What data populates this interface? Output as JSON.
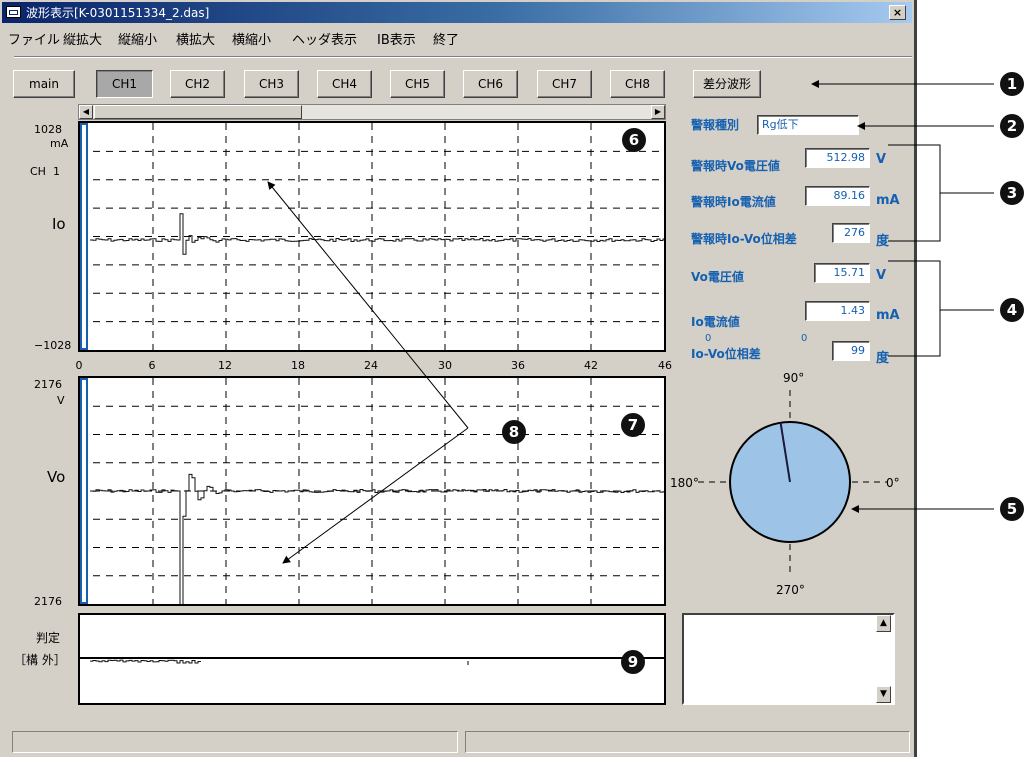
{
  "window": {
    "title": "波形表示[K-0301151334_2.das]",
    "close_label": "×"
  },
  "menu": {
    "items": [
      "ファイル",
      "縦拡大",
      "縦縮小",
      "横拡大",
      "横縮小",
      "ヘッダ表示",
      "IB表示",
      "終了"
    ]
  },
  "channel_buttons": {
    "items": [
      "main",
      "CH1",
      "CH2",
      "CH3",
      "CH4",
      "CH5",
      "CH6",
      "CH7",
      "CH8"
    ],
    "selected": "CH1",
    "diff_label": "差分波形"
  },
  "scrollbar": {
    "left_arrow": "◀",
    "right_arrow": "▶"
  },
  "plot_io": {
    "top_value": "1028",
    "unit": "mA",
    "channel": "CH  1",
    "signal": "Io",
    "bottom_value": "−1028"
  },
  "x_axis": {
    "ticks": [
      "0",
      "6",
      "12",
      "18",
      "24",
      "30",
      "36",
      "42",
      "46"
    ],
    "min": 0,
    "max": 46
  },
  "plot_vo": {
    "top_value": "2176",
    "unit": "V",
    "signal": "Vo",
    "bottom_value": "2176"
  },
  "judgement": {
    "label": "判定",
    "sub_label": "［構 外］"
  },
  "right_panel": {
    "alarm_type": {
      "label": "警報種別",
      "value": "Rg低下"
    },
    "alarm_vo": {
      "label": "警報時Vo電圧値",
      "value": "512.98",
      "unit": "V"
    },
    "alarm_io": {
      "label": "警報時Io電流値",
      "value": "89.16",
      "unit": "mA"
    },
    "alarm_phase": {
      "label": "警報時Io-Vo位相差",
      "value": "276",
      "unit": "度"
    },
    "vo": {
      "label": "Vo電圧値",
      "value": "15.71",
      "unit": "V"
    },
    "io": {
      "label": "Io電流値",
      "value": "1.43",
      "unit": "mA"
    },
    "phase": {
      "label": "Io-Vo位相差",
      "value": "99",
      "unit": "度",
      "zero_left": "0",
      "zero_right": "0"
    }
  },
  "phase_diagram": {
    "label_90": "90°",
    "label_180": "180°",
    "label_0": "0°",
    "label_270": "270°",
    "angle_deg": 99,
    "fill": "#9dc3e6"
  },
  "callouts": [
    "1",
    "2",
    "3",
    "4",
    "5",
    "6",
    "7",
    "8",
    "9"
  ],
  "colors": {
    "accent": "#1560b0",
    "window_bg": "#d4d0c8",
    "callout": "#111111"
  }
}
